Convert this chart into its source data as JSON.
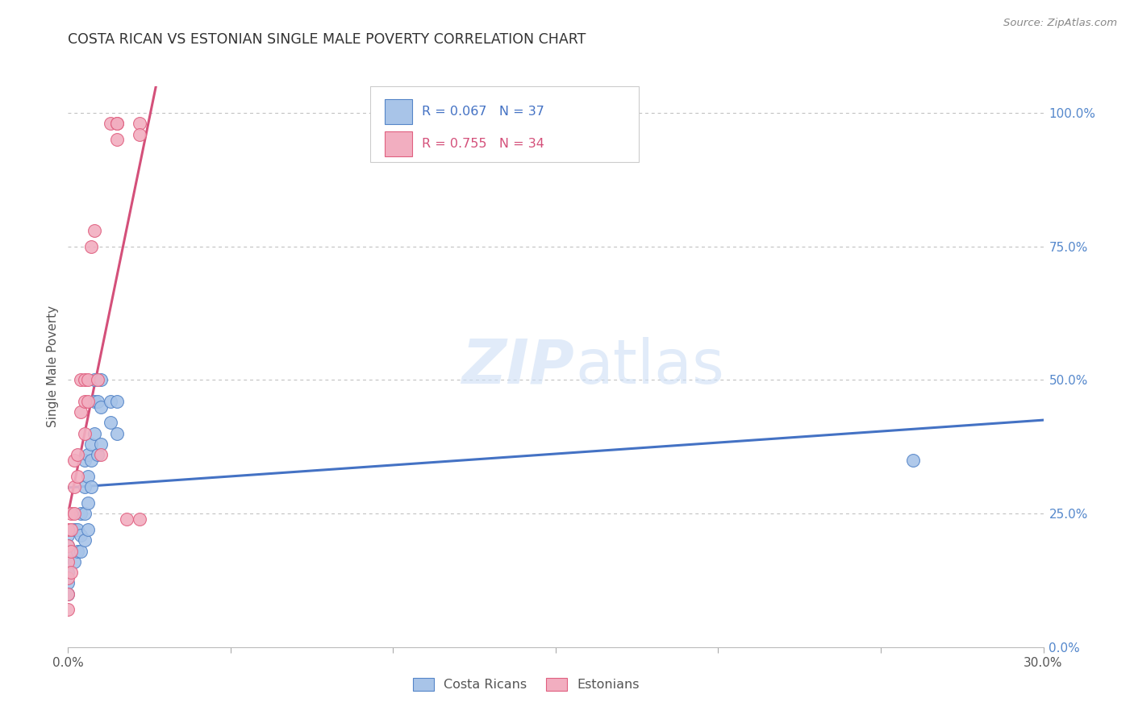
{
  "title": "COSTA RICAN VS ESTONIAN SINGLE MALE POVERTY CORRELATION CHART",
  "source": "Source: ZipAtlas.com",
  "ylabel": "Single Male Poverty",
  "legend_cr": "Costa Ricans",
  "legend_est": "Estonians",
  "cr_R": "0.067",
  "cr_N": "37",
  "est_R": "0.755",
  "est_N": "34",
  "cr_color": "#a8c4e8",
  "est_color": "#f2aec0",
  "cr_edge_color": "#5585c8",
  "est_edge_color": "#e06080",
  "cr_line_color": "#4472c4",
  "est_line_color": "#d4507a",
  "watermark_zip": "ZIP",
  "watermark_atlas": "atlas",
  "background_color": "#ffffff",
  "grid_color": "#bbbbbb",
  "right_axis_color": "#5588cc",
  "title_color": "#333333",
  "source_color": "#888888",
  "right_yticks": [
    0.0,
    0.25,
    0.5,
    0.75,
    1.0
  ],
  "right_yticklabels": [
    "0.0%",
    "25.0%",
    "50.0%",
    "75.0%",
    "100.0%"
  ],
  "costa_rican_x": [
    0.0,
    0.0,
    0.0,
    0.0,
    0.0,
    0.0,
    0.002,
    0.002,
    0.003,
    0.003,
    0.004,
    0.004,
    0.004,
    0.005,
    0.005,
    0.005,
    0.005,
    0.006,
    0.006,
    0.006,
    0.006,
    0.007,
    0.007,
    0.007,
    0.008,
    0.008,
    0.008,
    0.009,
    0.009,
    0.01,
    0.01,
    0.01,
    0.013,
    0.013,
    0.015,
    0.015,
    0.26
  ],
  "costa_rican_y": [
    0.21,
    0.19,
    0.17,
    0.14,
    0.12,
    0.1,
    0.22,
    0.16,
    0.22,
    0.18,
    0.25,
    0.21,
    0.18,
    0.35,
    0.3,
    0.25,
    0.2,
    0.36,
    0.32,
    0.27,
    0.22,
    0.38,
    0.35,
    0.3,
    0.5,
    0.46,
    0.4,
    0.46,
    0.36,
    0.5,
    0.45,
    0.38,
    0.46,
    0.42,
    0.46,
    0.4,
    0.35
  ],
  "estonian_x": [
    0.0,
    0.0,
    0.0,
    0.0,
    0.0,
    0.0,
    0.001,
    0.001,
    0.001,
    0.001,
    0.002,
    0.002,
    0.002,
    0.003,
    0.003,
    0.004,
    0.004,
    0.005,
    0.005,
    0.005,
    0.006,
    0.006,
    0.007,
    0.008,
    0.009,
    0.01,
    0.013,
    0.015,
    0.022,
    0.015,
    0.015,
    0.022,
    0.022,
    0.018
  ],
  "estonian_y": [
    0.22,
    0.19,
    0.16,
    0.13,
    0.1,
    0.07,
    0.25,
    0.22,
    0.18,
    0.14,
    0.35,
    0.3,
    0.25,
    0.36,
    0.32,
    0.5,
    0.44,
    0.5,
    0.46,
    0.4,
    0.5,
    0.46,
    0.75,
    0.78,
    0.5,
    0.36,
    0.98,
    0.98,
    0.24,
    0.98,
    0.95,
    0.98,
    0.96,
    0.24
  ],
  "xmin": 0.0,
  "xmax": 0.3,
  "ymin": 0.0,
  "ymax": 1.05,
  "cr_trend": [
    0.22,
    0.32
  ],
  "est_trend_x": [
    0.0,
    0.022
  ],
  "est_trend_y": [
    0.22,
    1.0
  ]
}
